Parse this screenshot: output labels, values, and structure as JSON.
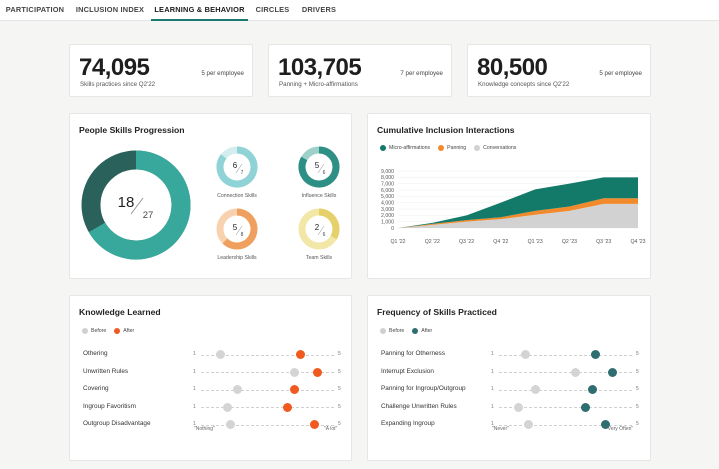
{
  "tabs": [
    {
      "label": "PARTICIPATION"
    },
    {
      "label": "INCLUSION INDEX"
    },
    {
      "label": "LEARNING & BEHAVIOR",
      "active": true
    },
    {
      "label": "CIRCLES"
    },
    {
      "label": "DRIVERS"
    }
  ],
  "stats": [
    {
      "value": "74,095",
      "label": "Skills practices since Q2'22",
      "per": "5 per employee"
    },
    {
      "value": "103,705",
      "label": "Panning + Micro-affirmations",
      "per": "7 per employee"
    },
    {
      "value": "80,500",
      "label": "Knowledge concepts since Q2'22",
      "per": "5 per employee"
    }
  ],
  "progression": {
    "title": "People Skills Progression",
    "main": {
      "num": "18",
      "den": "27",
      "fraction": 0.667
    },
    "skills": [
      {
        "label": "Connection Skills",
        "num": "6",
        "den": "7",
        "fraction": 0.857,
        "color": "#8fd3d6",
        "track": "#d4eef0"
      },
      {
        "label": "Influence Skills",
        "num": "5",
        "den": "6",
        "fraction": 0.833,
        "color": "#2e8f85",
        "track": "#9fd0ca"
      },
      {
        "label": "Leadership Skills",
        "num": "5",
        "den": "8",
        "fraction": 0.625,
        "color": "#f0a05e",
        "track": "#f8d2ae"
      },
      {
        "label": "Team Skills",
        "num": "2",
        "den": "6",
        "fraction": 0.333,
        "color": "#e6d06a",
        "track": "#f3e7a8"
      }
    ]
  },
  "cumulative": {
    "title": "Cumulative Inclusion Interactions",
    "legend": [
      {
        "name": "Micro-affirmations",
        "color": "#137a6a"
      },
      {
        "name": "Panning",
        "color": "#f08a2a"
      },
      {
        "name": "Conversations",
        "color": "#d2d2d2"
      }
    ],
    "y_ticks": [
      "9,000",
      "8,000",
      "7,000",
      "6,000",
      "5,000",
      "4,000",
      "3,000",
      "2,000",
      "1,000",
      "0"
    ]
  },
  "chart_data": {
    "type": "area",
    "categories": [
      "Q1 '22",
      "Q2 '22",
      "Q3 '22",
      "Q4 '22",
      "Q1 '23",
      "Q2 '23",
      "Q3 '23",
      "Q4 '23"
    ],
    "ylim": [
      0,
      9000
    ],
    "stacked": true,
    "series": [
      {
        "name": "Conversations",
        "values": [
          0,
          500,
          1000,
          1400,
          2100,
          2700,
          3800,
          3800
        ]
      },
      {
        "name": "Panning",
        "values": [
          0,
          150,
          250,
          300,
          600,
          700,
          900,
          900
        ]
      },
      {
        "name": "Micro-affirmations",
        "values": [
          0,
          150,
          750,
          2300,
          3400,
          3600,
          3300,
          3300
        ]
      }
    ]
  },
  "knowledge": {
    "title": "Knowledge Learned",
    "legend": [
      {
        "name": "Before",
        "color": "#d0d0d0"
      },
      {
        "name": "After",
        "color": "#f05a1e"
      }
    ],
    "scale_min": "1",
    "scale_max": "5",
    "end_left": "\"Nothing\"",
    "end_right": "\"A lot\"",
    "rows": [
      {
        "label": "Othering",
        "before": 1.6,
        "after": 4.0
      },
      {
        "label": "Unwritten Rules",
        "before": 3.8,
        "after": 4.5
      },
      {
        "label": "Covering",
        "before": 2.1,
        "after": 3.8
      },
      {
        "label": "Ingroup Favoritism",
        "before": 1.8,
        "after": 3.6
      },
      {
        "label": "Outgroup Disadvantage",
        "before": 1.9,
        "after": 4.4
      }
    ]
  },
  "frequency": {
    "title": "Frequency of Skills Practiced",
    "legend": [
      {
        "name": "Before",
        "color": "#d0d0d0"
      },
      {
        "name": "After",
        "color": "#2f6e70"
      }
    ],
    "scale_min": "1",
    "scale_max": "5",
    "end_left": "\"Never\"",
    "end_right": "\"Very Often\"",
    "rows": [
      {
        "label": "Panning for Otherness",
        "before": 1.8,
        "after": 3.9
      },
      {
        "label": "Interrupt Exclusion",
        "before": 3.3,
        "after": 4.4
      },
      {
        "label": "Panning for Ingroup/Outgroup",
        "before": 2.1,
        "after": 3.8
      },
      {
        "label": "Challenge Unwritten Rules",
        "before": 1.6,
        "after": 3.6
      },
      {
        "label": "Expanding Ingroup",
        "before": 1.9,
        "after": 4.2
      }
    ]
  }
}
